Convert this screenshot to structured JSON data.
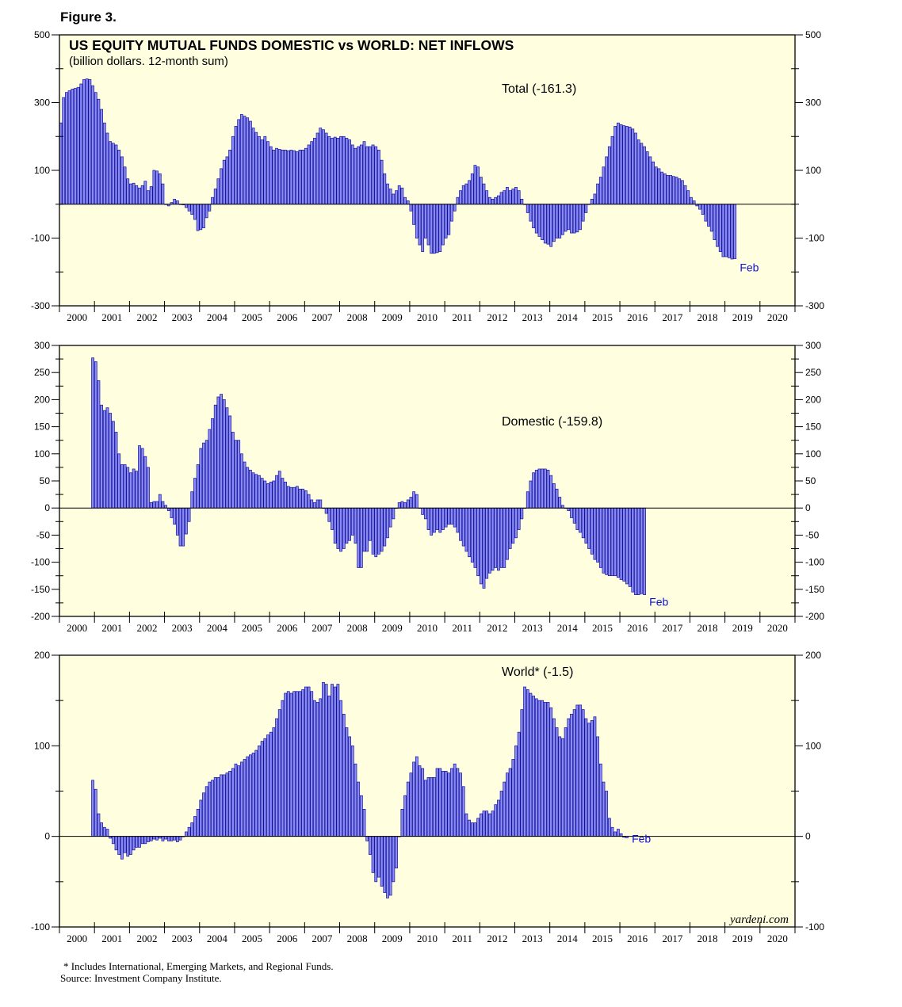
{
  "figure_label": "Figure 3.",
  "footnote": "* Includes International, Emerging Markets, and Regional Funds.",
  "source": "Source: Investment Company Institute.",
  "watermark": "yardeni.com",
  "colors": {
    "panel_bg": "#FFFFE0",
    "bar_fill": "#8C8CF0",
    "bar_stroke": "#1010A0",
    "annotation": "#1010D0"
  },
  "chart_data": [
    {
      "type": "bar",
      "title": "US EQUITY MUTUAL FUNDS DOMESTIC vs WORLD: NET INFLOWS",
      "subtitle": "(billion dollars. 12-month sum)",
      "series_label": "Total (-161.3)",
      "end_label": "Feb",
      "x_tick_labels": [
        "2000",
        "2001",
        "2002",
        "2003",
        "2004",
        "2005",
        "2006",
        "2007",
        "2008",
        "2009",
        "2010",
        "2011",
        "2012",
        "2013",
        "2014",
        "2015",
        "2016",
        "2017",
        "2018",
        "2019",
        "2020"
      ],
      "xlim": [
        2000,
        2021
      ],
      "ylim": [
        -300,
        500
      ],
      "y_ticks": [
        -300,
        -100,
        100,
        300,
        500
      ],
      "y_tick_labels": [
        "-300",
        "-100",
        "100",
        "300",
        "500"
      ],
      "zero_line": 0,
      "start": 2000.0,
      "step": 0.08333,
      "values": [
        240,
        315,
        330,
        335,
        340,
        342,
        345,
        355,
        368,
        370,
        368,
        350,
        330,
        310,
        280,
        240,
        210,
        185,
        180,
        175,
        160,
        140,
        110,
        75,
        60,
        62,
        55,
        48,
        55,
        68,
        40,
        52,
        100,
        98,
        90,
        60,
        0,
        -5,
        5,
        15,
        10,
        0,
        -2,
        -10,
        -20,
        -30,
        -45,
        -78,
        -75,
        -70,
        -40,
        -20,
        20,
        45,
        75,
        105,
        130,
        140,
        160,
        200,
        230,
        250,
        265,
        260,
        255,
        245,
        225,
        212,
        200,
        190,
        200,
        185,
        170,
        160,
        165,
        162,
        160,
        160,
        158,
        160,
        158,
        155,
        160,
        160,
        165,
        175,
        185,
        195,
        210,
        225,
        220,
        210,
        200,
        195,
        198,
        195,
        200,
        200,
        195,
        190,
        175,
        165,
        170,
        175,
        185,
        170,
        170,
        175,
        170,
        160,
        130,
        90,
        60,
        45,
        30,
        40,
        55,
        48,
        20,
        10,
        -20,
        -60,
        -100,
        -120,
        -140,
        -100,
        -120,
        -145,
        -145,
        -143,
        -140,
        -120,
        -100,
        -90,
        -50,
        -20,
        20,
        40,
        55,
        60,
        70,
        90,
        115,
        110,
        80,
        60,
        40,
        20,
        15,
        20,
        25,
        35,
        40,
        50,
        40,
        45,
        50,
        40,
        15,
        0,
        -25,
        -50,
        -70,
        -85,
        -95,
        -105,
        -115,
        -118,
        -125,
        -110,
        -100,
        -100,
        -90,
        -80,
        -75,
        -85,
        -85,
        -82,
        -75,
        -50,
        -25,
        0,
        15,
        30,
        60,
        80,
        110,
        140,
        170,
        200,
        230,
        240,
        235,
        232,
        230,
        228,
        222,
        210,
        190,
        180,
        170,
        155,
        140,
        125,
        110,
        105,
        95,
        90,
        85,
        85,
        82,
        80,
        75,
        70,
        55,
        40,
        20,
        10,
        -5,
        -15,
        -30,
        -50,
        -65,
        -80,
        -105,
        -125,
        -140,
        -155,
        -155,
        -158,
        -162,
        -161
      ]
    },
    {
      "type": "bar",
      "series_label": "Domestic (-159.8)",
      "end_label": "Feb",
      "x_tick_labels": [
        "2000",
        "2001",
        "2002",
        "2003",
        "2004",
        "2005",
        "2006",
        "2007",
        "2008",
        "2009",
        "2010",
        "2011",
        "2012",
        "2013",
        "2014",
        "2015",
        "2016",
        "2017",
        "2018",
        "2019",
        "2020"
      ],
      "xlim": [
        2000,
        2021
      ],
      "ylim": [
        -200,
        300
      ],
      "y_ticks": [
        -200,
        -150,
        -100,
        -50,
        0,
        50,
        100,
        150,
        200,
        250,
        300
      ],
      "y_tick_labels": [
        "-200",
        "-150",
        "-100",
        "-50",
        "0",
        "50",
        "100",
        "150",
        "200",
        "250",
        "300"
      ],
      "zero_line": 0,
      "start": 2000.917,
      "step": 0.08333,
      "values": [
        277,
        270,
        235,
        190,
        180,
        185,
        175,
        160,
        140,
        100,
        80,
        80,
        75,
        65,
        72,
        68,
        115,
        110,
        95,
        75,
        10,
        12,
        12,
        25,
        12,
        5,
        -5,
        -18,
        -30,
        -50,
        -70,
        -70,
        -48,
        -25,
        30,
        55,
        80,
        110,
        120,
        125,
        145,
        165,
        190,
        205,
        210,
        200,
        185,
        170,
        140,
        125,
        125,
        100,
        85,
        75,
        70,
        65,
        62,
        60,
        55,
        50,
        45,
        48,
        50,
        60,
        68,
        55,
        48,
        40,
        38,
        38,
        40,
        35,
        35,
        32,
        25,
        15,
        10,
        15,
        15,
        0,
        -10,
        -25,
        -40,
        -65,
        -75,
        -80,
        -75,
        -65,
        -60,
        -50,
        -65,
        -110,
        -110,
        -80,
        -80,
        -60,
        -85,
        -90,
        -85,
        -80,
        -70,
        -55,
        -35,
        -20,
        0,
        10,
        12,
        10,
        15,
        20,
        30,
        25,
        0,
        -12,
        -20,
        -40,
        -50,
        -45,
        -40,
        -45,
        -40,
        -35,
        -30,
        -30,
        -35,
        -45,
        -60,
        -70,
        -80,
        -90,
        -100,
        -110,
        -125,
        -140,
        -148,
        -130,
        -120,
        -115,
        -110,
        -115,
        -110,
        -110,
        -95,
        -75,
        -65,
        -55,
        -40,
        -20,
        0,
        30,
        50,
        65,
        70,
        72,
        72,
        72,
        70,
        60,
        45,
        35,
        20,
        5,
        0,
        -5,
        -18,
        -28,
        -40,
        -45,
        -55,
        -65,
        -75,
        -85,
        -95,
        -100,
        -110,
        -120,
        -123,
        -125,
        -125,
        -125,
        -128,
        -132,
        -135,
        -140,
        -145,
        -155,
        -160,
        -160,
        -158,
        -160
      ]
    },
    {
      "type": "bar",
      "series_label": "World* (-1.5)",
      "end_label": "Feb",
      "x_tick_labels": [
        "2000",
        "2001",
        "2002",
        "2003",
        "2004",
        "2005",
        "2006",
        "2007",
        "2008",
        "2009",
        "2010",
        "2011",
        "2012",
        "2013",
        "2014",
        "2015",
        "2016",
        "2017",
        "2018",
        "2019",
        "2020"
      ],
      "xlim": [
        2000,
        2021
      ],
      "ylim": [
        -100,
        200
      ],
      "y_ticks": [
        -100,
        0,
        100,
        200
      ],
      "y_tick_labels": [
        "-100",
        "0",
        "100",
        "200"
      ],
      "zero_line": 0,
      "start": 2000.917,
      "step": 0.08333,
      "values": [
        62,
        52,
        25,
        15,
        10,
        8,
        -2,
        -8,
        -15,
        -20,
        -25,
        -18,
        -22,
        -20,
        -15,
        -12,
        -12,
        -8,
        -8,
        -6,
        -5,
        -3,
        -4,
        -2,
        -5,
        -3,
        -5,
        -5,
        -4,
        -6,
        -4,
        0,
        5,
        10,
        15,
        22,
        30,
        40,
        48,
        55,
        60,
        62,
        65,
        65,
        68,
        68,
        70,
        72,
        75,
        80,
        78,
        82,
        85,
        88,
        90,
        92,
        95,
        100,
        105,
        108,
        112,
        115,
        120,
        130,
        140,
        150,
        158,
        160,
        158,
        160,
        160,
        160,
        162,
        165,
        165,
        160,
        150,
        148,
        152,
        170,
        168,
        155,
        168,
        165,
        168,
        150,
        135,
        120,
        110,
        100,
        80,
        60,
        45,
        30,
        -5,
        -20,
        -40,
        -50,
        -45,
        -55,
        -62,
        -68,
        -65,
        -50,
        -35,
        0,
        30,
        45,
        60,
        70,
        82,
        88,
        78,
        75,
        62,
        65,
        65,
        65,
        75,
        75,
        72,
        72,
        70,
        75,
        80,
        75,
        70,
        55,
        25,
        18,
        15,
        15,
        20,
        25,
        28,
        28,
        25,
        28,
        35,
        40,
        50,
        60,
        70,
        75,
        85,
        100,
        115,
        140,
        165,
        162,
        158,
        155,
        152,
        150,
        150,
        148,
        148,
        142,
        130,
        120,
        110,
        108,
        120,
        130,
        135,
        140,
        145,
        145,
        140,
        130,
        125,
        128,
        132,
        110,
        80,
        60,
        50,
        20,
        10,
        5,
        8,
        3,
        -1,
        -1.5
      ]
    }
  ]
}
